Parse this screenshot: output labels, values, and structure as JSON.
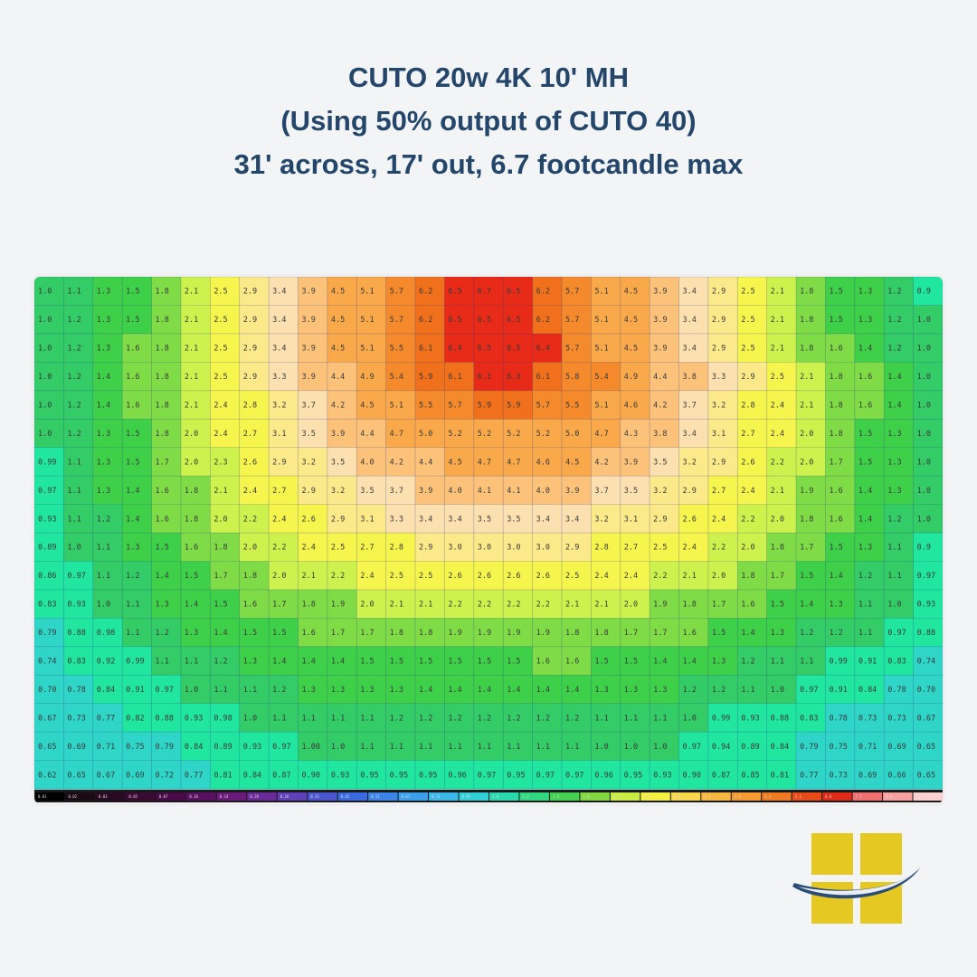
{
  "title": {
    "line1": "CUTO 20w 4K 10' MH",
    "line2": "(Using 50% output of CUTO 40)",
    "line3": "31' across, 17' out, 6.7 footcandle max"
  },
  "colors": {
    "title": "#23466a",
    "background": "#f2f4f6",
    "logo_yellow": "#e5c822",
    "logo_swoosh": "#2a4d78"
  },
  "logo": {
    "icon": "window-grid-logo-icon"
  },
  "chart_data": {
    "type": "heatmap",
    "title": "",
    "xlabel": "",
    "ylabel": "",
    "units": "footcandles",
    "rows": [
      [
        "1.0",
        "1.1",
        "1.3",
        "1.5",
        "1.8",
        "2.1",
        "2.5",
        "2.9",
        "3.4",
        "3.9",
        "4.5",
        "5.1",
        "5.7",
        "6.2",
        "6.5",
        "6.7",
        "6.5",
        "6.2",
        "5.7",
        "5.1",
        "4.5",
        "3.9",
        "3.4",
        "2.9",
        "2.5",
        "2.1",
        "1.8",
        "1.5",
        "1.3",
        "1.2",
        "0.9"
      ],
      [
        "1.0",
        "1.2",
        "1.3",
        "1.5",
        "1.8",
        "2.1",
        "2.5",
        "2.9",
        "3.4",
        "3.9",
        "4.5",
        "5.1",
        "5.7",
        "6.2",
        "6.5",
        "6.5",
        "6.5",
        "6.2",
        "5.7",
        "5.1",
        "4.5",
        "3.9",
        "3.4",
        "2.9",
        "2.5",
        "2.1",
        "1.8",
        "1.5",
        "1.3",
        "1.2",
        "1.0"
      ],
      [
        "1.0",
        "1.2",
        "1.3",
        "1.6",
        "1.8",
        "2.1",
        "2.5",
        "2.9",
        "3.4",
        "3.9",
        "4.5",
        "5.1",
        "5.5",
        "6.1",
        "6.4",
        "6.5",
        "6.5",
        "6.4",
        "5.7",
        "5.1",
        "4.5",
        "3.9",
        "3.4",
        "2.9",
        "2.5",
        "2.1",
        "1.8",
        "1.6",
        "1.4",
        "1.2",
        "1.0"
      ],
      [
        "1.0",
        "1.2",
        "1.4",
        "1.6",
        "1.8",
        "2.1",
        "2.5",
        "2.9",
        "3.3",
        "3.9",
        "4.4",
        "4.9",
        "5.4",
        "5.9",
        "6.1",
        "6.3",
        "6.3",
        "6.1",
        "5.8",
        "5.4",
        "4.9",
        "4.4",
        "3.8",
        "3.3",
        "2.9",
        "2.5",
        "2.1",
        "1.8",
        "1.6",
        "1.4",
        "1.0"
      ],
      [
        "1.0",
        "1.2",
        "1.4",
        "1.6",
        "1.8",
        "2.1",
        "2.4",
        "2.8",
        "3.2",
        "3.7",
        "4.2",
        "4.5",
        "5.1",
        "5.5",
        "5.7",
        "5.9",
        "5.9",
        "5.7",
        "5.5",
        "5.1",
        "4.6",
        "4.2",
        "3.7",
        "3.2",
        "2.8",
        "2.4",
        "2.1",
        "1.8",
        "1.6",
        "1.4",
        "1.0"
      ],
      [
        "1.0",
        "1.2",
        "1.3",
        "1.5",
        "1.8",
        "2.0",
        "2.4",
        "2.7",
        "3.1",
        "3.5",
        "3.9",
        "4.4",
        "4.7",
        "5.0",
        "5.2",
        "5.2",
        "5.2",
        "5.2",
        "5.0",
        "4.7",
        "4.3",
        "3.8",
        "3.4",
        "3.1",
        "2.7",
        "2.4",
        "2.0",
        "1.8",
        "1.5",
        "1.3",
        "1.0"
      ],
      [
        "0.99",
        "1.1",
        "1.3",
        "1.5",
        "1.7",
        "2.0",
        "2.3",
        "2.6",
        "2.9",
        "3.2",
        "3.5",
        "4.0",
        "4.2",
        "4.4",
        "4.5",
        "4.7",
        "4.7",
        "4.6",
        "4.5",
        "4.2",
        "3.9",
        "3.5",
        "3.2",
        "2.9",
        "2.6",
        "2.2",
        "2.0",
        "1.7",
        "1.5",
        "1.3",
        "1.0"
      ],
      [
        "0.97",
        "1.1",
        "1.3",
        "1.4",
        "1.6",
        "1.8",
        "2.1",
        "2.4",
        "2.7",
        "2.9",
        "3.2",
        "3.5",
        "3.7",
        "3.9",
        "4.0",
        "4.1",
        "4.1",
        "4.0",
        "3.9",
        "3.7",
        "3.5",
        "3.2",
        "2.9",
        "2.7",
        "2.4",
        "2.1",
        "1.9",
        "1.6",
        "1.4",
        "1.3",
        "1.0"
      ],
      [
        "0.93",
        "1.1",
        "1.2",
        "1.4",
        "1.6",
        "1.8",
        "2.0",
        "2.2",
        "2.4",
        "2.6",
        "2.9",
        "3.1",
        "3.3",
        "3.4",
        "3.4",
        "3.5",
        "3.5",
        "3.4",
        "3.4",
        "3.2",
        "3.1",
        "2.9",
        "2.6",
        "2.4",
        "2.2",
        "2.0",
        "1.8",
        "1.6",
        "1.4",
        "1.2",
        "1.0"
      ],
      [
        "0.89",
        "1.0",
        "1.1",
        "1.3",
        "1.5",
        "1.6",
        "1.8",
        "2.0",
        "2.2",
        "2.4",
        "2.5",
        "2.7",
        "2.8",
        "2.9",
        "3.0",
        "3.0",
        "3.0",
        "3.0",
        "2.9",
        "2.8",
        "2.7",
        "2.5",
        "2.4",
        "2.2",
        "2.0",
        "1.8",
        "1.7",
        "1.5",
        "1.3",
        "1.1",
        "0.9"
      ],
      [
        "0.86",
        "0.97",
        "1.1",
        "1.2",
        "1.4",
        "1.5",
        "1.7",
        "1.8",
        "2.0",
        "2.1",
        "2.2",
        "2.4",
        "2.5",
        "2.5",
        "2.6",
        "2.6",
        "2.6",
        "2.6",
        "2.5",
        "2.4",
        "2.4",
        "2.2",
        "2.1",
        "2.0",
        "1.8",
        "1.7",
        "1.5",
        "1.4",
        "1.2",
        "1.1",
        "0.97"
      ],
      [
        "0.83",
        "0.93",
        "1.0",
        "1.1",
        "1.3",
        "1.4",
        "1.5",
        "1.6",
        "1.7",
        "1.8",
        "1.9",
        "2.0",
        "2.1",
        "2.1",
        "2.2",
        "2.2",
        "2.2",
        "2.2",
        "2.1",
        "2.1",
        "2.0",
        "1.9",
        "1.8",
        "1.7",
        "1.6",
        "1.5",
        "1.4",
        "1.3",
        "1.1",
        "1.0",
        "0.93"
      ],
      [
        "0.79",
        "0.88",
        "0.98",
        "1.1",
        "1.2",
        "1.3",
        "1.4",
        "1.5",
        "1.5",
        "1.6",
        "1.7",
        "1.7",
        "1.8",
        "1.8",
        "1.9",
        "1.9",
        "1.9",
        "1.9",
        "1.8",
        "1.8",
        "1.7",
        "1.7",
        "1.6",
        "1.5",
        "1.4",
        "1.3",
        "1.2",
        "1.2",
        "1.1",
        "0.97",
        "0.88"
      ],
      [
        "0.74",
        "0.83",
        "0.92",
        "0.99",
        "1.1",
        "1.1",
        "1.2",
        "1.3",
        "1.4",
        "1.4",
        "1.4",
        "1.5",
        "1.5",
        "1.5",
        "1.5",
        "1.5",
        "1.5",
        "1.6",
        "1.6",
        "1.5",
        "1.5",
        "1.4",
        "1.4",
        "1.3",
        "1.2",
        "1.1",
        "1.1",
        "0.99",
        "0.91",
        "0.83",
        "0.74"
      ],
      [
        "0.70",
        "0.78",
        "0.84",
        "0.91",
        "0.97",
        "1.0",
        "1.1",
        "1.1",
        "1.2",
        "1.3",
        "1.3",
        "1.3",
        "1.3",
        "1.4",
        "1.4",
        "1.4",
        "1.4",
        "1.4",
        "1.4",
        "1.3",
        "1.3",
        "1.3",
        "1.2",
        "1.2",
        "1.1",
        "1.0",
        "0.97",
        "0.91",
        "0.84",
        "0.78",
        "0.70"
      ],
      [
        "0.67",
        "0.73",
        "0.77",
        "0.82",
        "0.88",
        "0.93",
        "0.98",
        "1.0",
        "1.1",
        "1.1",
        "1.1",
        "1.1",
        "1.2",
        "1.2",
        "1.2",
        "1.2",
        "1.2",
        "1.2",
        "1.2",
        "1.1",
        "1.1",
        "1.1",
        "1.0",
        "0.99",
        "0.93",
        "0.88",
        "0.83",
        "0.78",
        "0.73",
        "0.73",
        "0.67"
      ],
      [
        "0.65",
        "0.69",
        "0.71",
        "0.75",
        "0.79",
        "0.84",
        "0.89",
        "0.93",
        "0.97",
        "1.00",
        "1.0",
        "1.1",
        "1.1",
        "1.1",
        "1.1",
        "1.1",
        "1.1",
        "1.1",
        "1.1",
        "1.0",
        "1.0",
        "1.0",
        "0.97",
        "0.94",
        "0.89",
        "0.84",
        "0.79",
        "0.75",
        "0.71",
        "0.69",
        "0.65"
      ],
      [
        "0.62",
        "0.65",
        "0.67",
        "0.69",
        "0.72",
        "0.77",
        "0.81",
        "0.84",
        "0.87",
        "0.90",
        "0.93",
        "0.95",
        "0.95",
        "0.95",
        "0.96",
        "0.97",
        "0.95",
        "0.97",
        "0.97",
        "0.96",
        "0.95",
        "0.93",
        "0.90",
        "0.87",
        "0.85",
        "0.81",
        "0.77",
        "0.73",
        "0.69",
        "0.66",
        "0.65"
      ]
    ],
    "color_scale": [
      "0.01",
      "0.02",
      "0.03",
      "0.05",
      "0.07",
      "0.10",
      "0.14",
      "0.20",
      "0.26",
      "0.33",
      "0.42",
      "0.51",
      "0.61",
      "0.72",
      "0.85",
      "1.0",
      "1.2",
      "1.4",
      "1.6",
      "1.9",
      "2.2",
      "2.6",
      "3.1",
      "3.6",
      "4.3",
      "5.1",
      "6.0",
      "7.1",
      "8.4",
      "10"
    ],
    "zmax": 6.7,
    "grid": true
  }
}
